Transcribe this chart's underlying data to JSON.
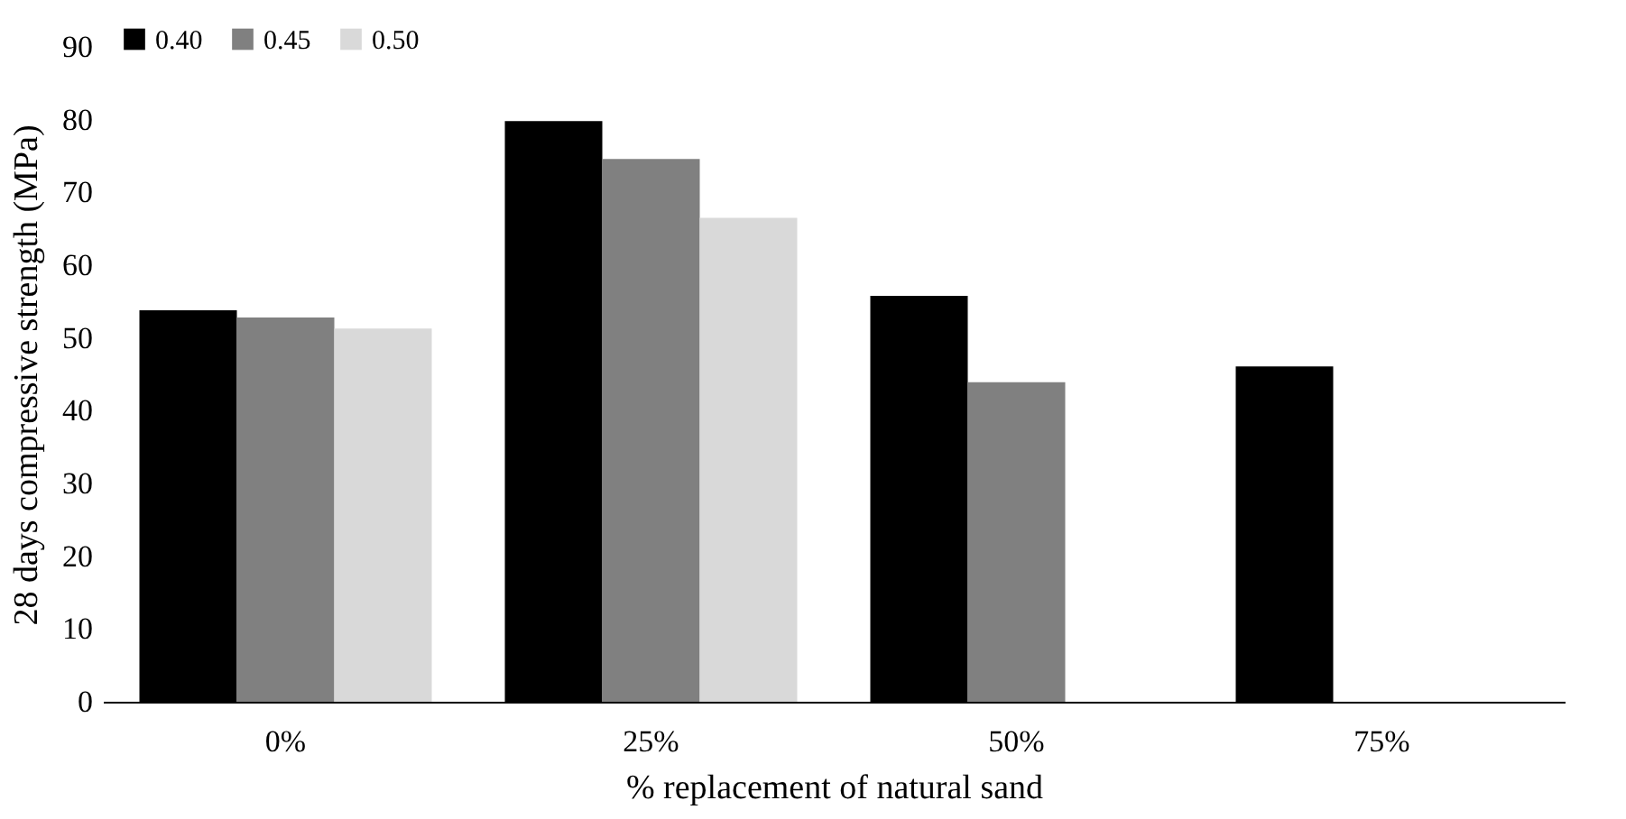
{
  "chart_data": {
    "type": "bar",
    "xlabel": "% replacement of natural sand",
    "ylabel": "28 days compressive strength (MPa)",
    "categories": [
      "0%",
      "25%",
      "50%",
      "75%"
    ],
    "series": [
      {
        "name": "0.40",
        "color": "#000000",
        "values": [
          53.8,
          79.8,
          55.8,
          46.1
        ]
      },
      {
        "name": "0.45",
        "color": "#808080",
        "values": [
          52.8,
          74.6,
          43.9,
          null
        ]
      },
      {
        "name": "0.50",
        "color": "#d9d9d9",
        "values": [
          51.3,
          66.5,
          null,
          null
        ]
      }
    ],
    "ylim": [
      0,
      90
    ],
    "yticks": [
      0,
      10,
      20,
      30,
      40,
      50,
      60,
      70,
      80,
      90
    ],
    "grid": false,
    "legend": "top left"
  }
}
